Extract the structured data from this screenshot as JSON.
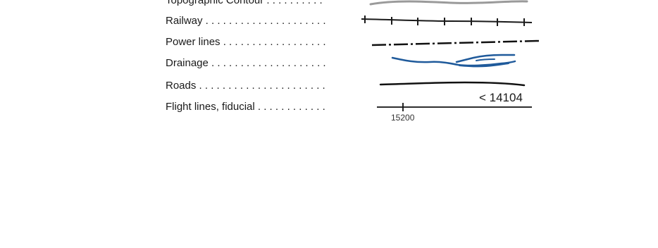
{
  "legend": {
    "rows": [
      {
        "label": "Topographic Contour . . . . . . . . . .",
        "symbol": "topographic-contour"
      },
      {
        "label": "Railway . . . . . . . . . . . . . . . . . . . . .",
        "symbol": "railway"
      },
      {
        "label": "Power lines . . . . . . . . . . . . . . . . . .",
        "symbol": "power-lines"
      },
      {
        "label": "Drainage . . . . . . . . . . . . . . . . . . . .",
        "symbol": "drainage"
      },
      {
        "label": "Roads . . . . . . . . . . . . . . . . . . . . . .",
        "symbol": "roads"
      },
      {
        "label": "Flight lines, fiducial . . . . . . . . . . . .",
        "symbol": "flight-line"
      }
    ],
    "flight_line_number": "< 14104",
    "fiducial_number": "15200",
    "colors": {
      "contour": "#9a9a9a",
      "railway": "#1a1a1a",
      "power_lines": "#111111",
      "drainage": "#1f5a9b",
      "roads": "#111111",
      "flight_line": "#111111"
    }
  }
}
